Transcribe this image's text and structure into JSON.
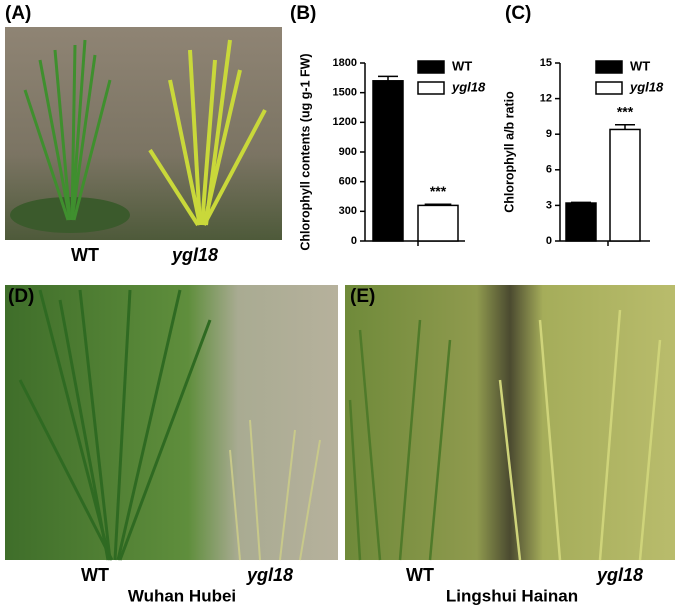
{
  "panels": {
    "a": {
      "label": "(A)",
      "captions": [
        "WT",
        "ygl18"
      ]
    },
    "d": {
      "label": "(D)",
      "captions": [
        "WT",
        "ygl18"
      ],
      "location": "Wuhan Hubei"
    },
    "e": {
      "label": "(E)",
      "captions": [
        "WT",
        "ygl18"
      ],
      "location": "Lingshui Hainan"
    }
  },
  "chart_data": [
    {
      "type": "bar",
      "panel_label": "(B)",
      "y_label": "Chlorophyll contents (ug g-1 FW)",
      "series": [
        {
          "name": "WT",
          "color": "#000000",
          "values": [
            1620
          ],
          "errors": [
            45
          ]
        },
        {
          "name": "ygl18",
          "color": "#ffffff",
          "values": [
            360
          ],
          "errors": [
            12
          ]
        }
      ],
      "annotation": "***",
      "ylim": [
        0,
        1800
      ],
      "yticks": [
        0,
        300,
        600,
        900,
        1200,
        1500,
        1800
      ]
    },
    {
      "type": "bar",
      "panel_label": "(C)",
      "y_label": "Chlorophyll a/b ratio",
      "series": [
        {
          "name": "WT",
          "color": "#000000",
          "values": [
            3.2
          ],
          "errors": [
            0.05
          ]
        },
        {
          "name": "ygl18",
          "color": "#ffffff",
          "values": [
            9.4
          ],
          "errors": [
            0.4
          ]
        }
      ],
      "annotation": "***",
      "ylim": [
        0,
        15
      ],
      "yticks": [
        0,
        3,
        6,
        9,
        12,
        15
      ]
    }
  ]
}
